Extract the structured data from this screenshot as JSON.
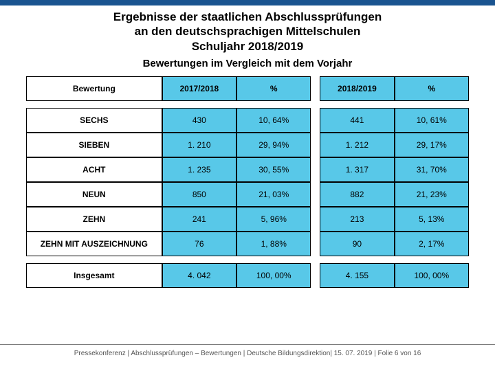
{
  "header_bar_color": "#1a5490",
  "title": {
    "line1": "Ergebnisse der staatlichen Abschlussprüfungen",
    "line2": "an den deutschsprachigen Mittelschulen",
    "line3": "Schuljahr 2018/2019"
  },
  "subtitle": "Bewertungen im Vergleich mit dem Vorjahr",
  "table": {
    "highlight_color": "#58c8e8",
    "columns": [
      "Bewertung",
      "2017/2018",
      "%",
      "2018/2019",
      "%"
    ],
    "rows": [
      {
        "label": "SECHS",
        "a": "430",
        "ap": "10, 64%",
        "b": "441",
        "bp": "10, 61%"
      },
      {
        "label": "SIEBEN",
        "a": "1. 210",
        "ap": "29, 94%",
        "b": "1. 212",
        "bp": "29, 17%"
      },
      {
        "label": "ACHT",
        "a": "1. 235",
        "ap": "30, 55%",
        "b": "1. 317",
        "bp": "31, 70%"
      },
      {
        "label": "NEUN",
        "a": "850",
        "ap": "21, 03%",
        "b": "882",
        "bp": "21, 23%"
      },
      {
        "label": "ZEHN",
        "a": "241",
        "ap": "5, 96%",
        "b": "213",
        "bp": "5, 13%"
      },
      {
        "label": "ZEHN MIT AUSZEICHNUNG",
        "a": "76",
        "ap": "1, 88%",
        "b": "90",
        "bp": "2, 17%"
      },
      {
        "label": "Insgesamt",
        "a": "4. 042",
        "ap": "100, 00%",
        "b": "4. 155",
        "bp": "100, 00%"
      }
    ]
  },
  "footer": "Pressekonferenz | Abschlussprüfungen – Bewertungen | Deutsche Bildungsdirektion| 15. 07. 2019 | Folie 6 von 16"
}
